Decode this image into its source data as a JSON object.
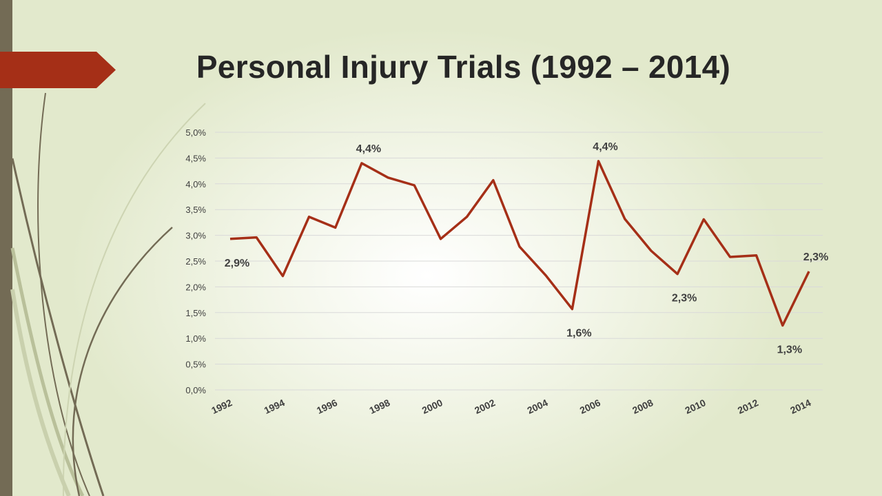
{
  "title": "Personal Injury Trials (1992 – 2014)",
  "colors": {
    "line": "#a52f17",
    "accent": "#a52f17",
    "sidebar": "#736b55",
    "grid": "#d9d9d9",
    "text": "#262626"
  },
  "chart_data": {
    "type": "line",
    "x": [
      1992,
      1993,
      1994,
      1995,
      1996,
      1997,
      1998,
      1999,
      2000,
      2001,
      2002,
      2003,
      2004,
      2005,
      2006,
      2007,
      2008,
      2009,
      2010,
      2011,
      2012,
      2013,
      2014
    ],
    "values": [
      2.93,
      2.96,
      2.21,
      3.36,
      3.15,
      4.4,
      4.12,
      3.97,
      2.93,
      3.36,
      4.07,
      2.78,
      2.22,
      1.57,
      4.44,
      3.32,
      2.7,
      2.25,
      3.31,
      2.58,
      2.61,
      1.25,
      2.3
    ],
    "ylim": [
      0,
      5
    ],
    "y_ticks": [
      "0,0%",
      "0,5%",
      "1,0%",
      "1,5%",
      "2,0%",
      "2,5%",
      "3,0%",
      "3,5%",
      "4,0%",
      "4,5%",
      "5,0%"
    ],
    "x_tick_labels": [
      "1992",
      "1994",
      "1996",
      "1998",
      "2000",
      "2002",
      "2004",
      "2006",
      "2008",
      "2010",
      "2012",
      "2014"
    ],
    "data_labels": [
      {
        "x": 1992,
        "text": "2,9%",
        "pos": "below"
      },
      {
        "x": 1997,
        "text": "4,4%",
        "pos": "above"
      },
      {
        "x": 2005,
        "text": "1,6%",
        "pos": "below"
      },
      {
        "x": 2006,
        "text": "4,4%",
        "pos": "above"
      },
      {
        "x": 2009,
        "text": "2,3%",
        "pos": "below"
      },
      {
        "x": 2013,
        "text": "1,3%",
        "pos": "below"
      },
      {
        "x": 2014,
        "text": "2,3%",
        "pos": "above"
      }
    ],
    "grid": true,
    "legend": "none"
  }
}
